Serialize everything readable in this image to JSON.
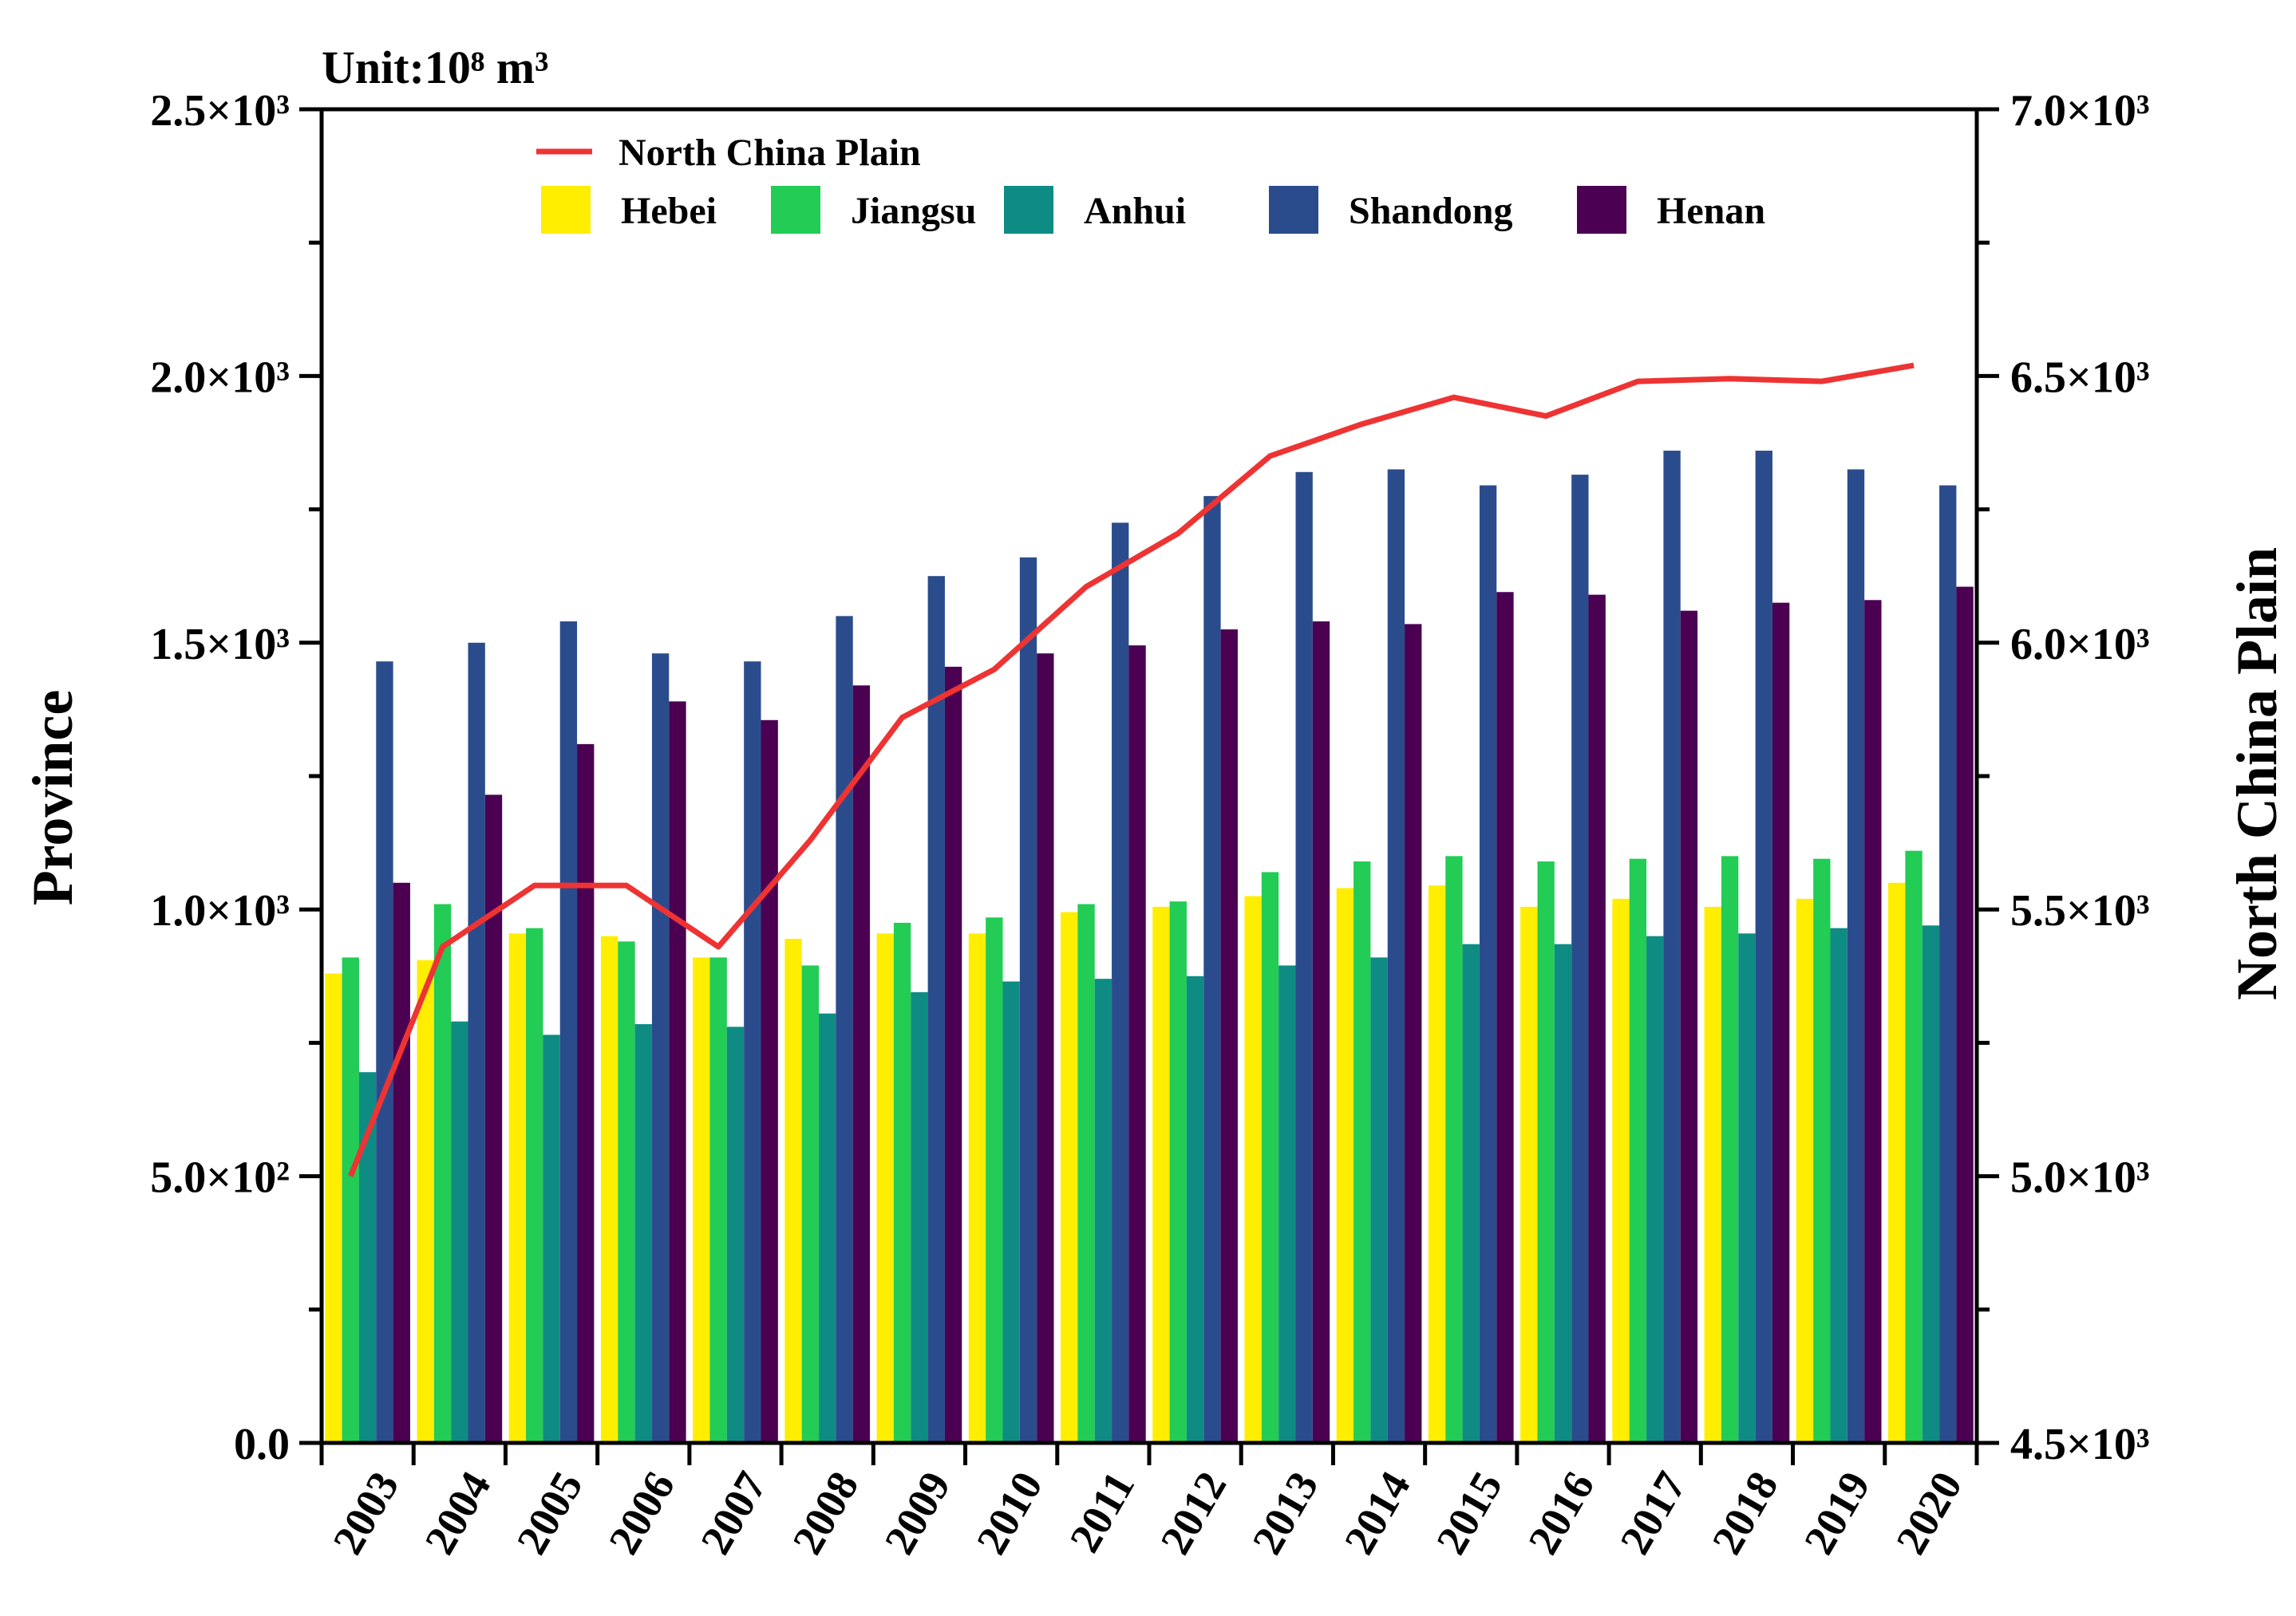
{
  "chart_data": {
    "type": "bar",
    "unit_label": "Unit:10⁸ m³",
    "categories": [
      "2003",
      "2004",
      "2005",
      "2006",
      "2007",
      "2008",
      "2009",
      "2010",
      "2011",
      "2012",
      "2013",
      "2014",
      "2015",
      "2016",
      "2017",
      "2018",
      "2019",
      "2020"
    ],
    "left_axis": {
      "label": "Province",
      "ylim": [
        0,
        2500
      ],
      "ticks": [
        0,
        500,
        1000,
        1500,
        2000,
        2500
      ],
      "tick_labels": [
        "0.0",
        "5.0×10²",
        "1.0×10³",
        "1.5×10³",
        "2.0×10³",
        "2.5×10³"
      ]
    },
    "right_axis": {
      "label": "North China Plain",
      "ylim": [
        4500,
        7000
      ],
      "ticks": [
        4500,
        5000,
        5500,
        6000,
        6500,
        7000
      ],
      "tick_labels": [
        "4.5×10³",
        "5.0×10³",
        "5.5×10³",
        "6.0×10³",
        "6.5×10³",
        "7.0×10³"
      ]
    },
    "series": [
      {
        "name": "Hebei",
        "type": "bar",
        "axis": "left",
        "color": "#FFEE00",
        "values": [
          880,
          905,
          955,
          950,
          910,
          945,
          955,
          955,
          995,
          1005,
          1025,
          1040,
          1045,
          1005,
          1020,
          1005,
          1020,
          1050
        ]
      },
      {
        "name": "Jiangsu",
        "type": "bar",
        "axis": "left",
        "color": "#22CC55",
        "values": [
          910,
          1010,
          965,
          940,
          910,
          895,
          975,
          985,
          1010,
          1015,
          1070,
          1090,
          1100,
          1090,
          1095,
          1100,
          1095,
          1110
        ]
      },
      {
        "name": "Anhui",
        "type": "bar",
        "axis": "left",
        "color": "#0E8C84",
        "values": [
          695,
          790,
          765,
          785,
          780,
          805,
          845,
          865,
          870,
          875,
          895,
          910,
          935,
          935,
          950,
          955,
          965,
          970
        ]
      },
      {
        "name": "Shandong",
        "type": "bar",
        "axis": "left",
        "color": "#2B4C8C",
        "values": [
          1465,
          1500,
          1540,
          1480,
          1465,
          1550,
          1625,
          1660,
          1725,
          1775,
          1820,
          1825,
          1795,
          1815,
          1860,
          1860,
          1825,
          1795
        ]
      },
      {
        "name": "Henan",
        "type": "bar",
        "axis": "left",
        "color": "#4B0052",
        "values": [
          1050,
          1215,
          1310,
          1390,
          1355,
          1420,
          1455,
          1480,
          1495,
          1525,
          1540,
          1535,
          1595,
          1590,
          1560,
          1575,
          1580,
          1605
        ]
      },
      {
        "name": "North China Plain",
        "type": "line",
        "axis": "right",
        "color": "#EE3333",
        "values": [
          5000,
          5430,
          5545,
          5545,
          5430,
          5630,
          5860,
          5950,
          6105,
          6205,
          6350,
          6410,
          6460,
          6425,
          6490,
          6495,
          6490,
          6520
        ]
      }
    ],
    "legend_position": "top-left inside plot",
    "grid": false
  }
}
